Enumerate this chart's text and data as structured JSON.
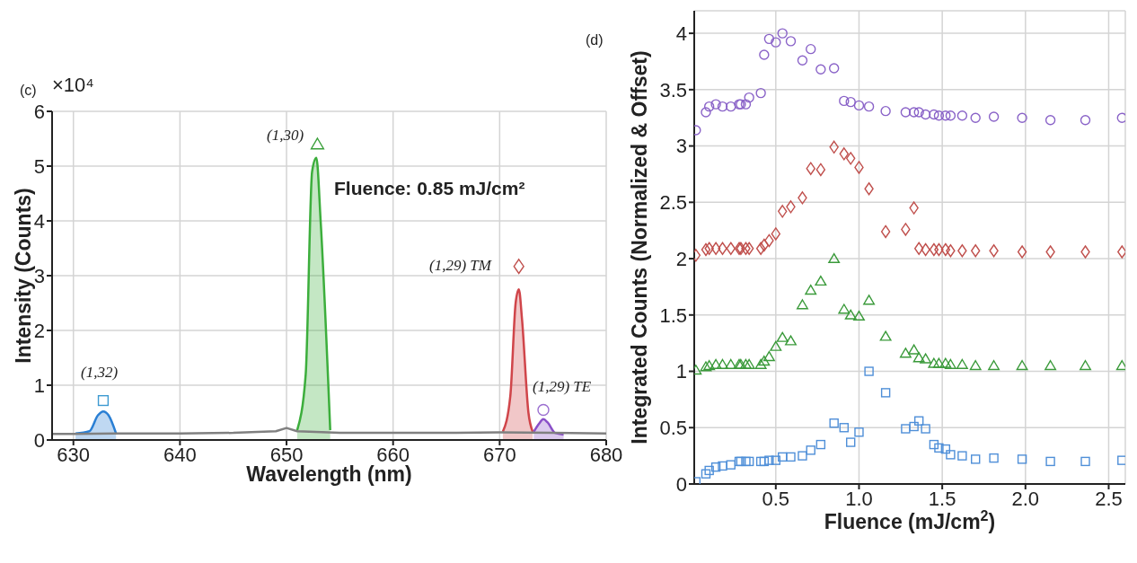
{
  "chart_data": [
    {
      "type": "area",
      "title": "(c)",
      "xlabel": "Wavelength (nm)",
      "ylabel": "Intensity (Counts)",
      "xlim": [
        628,
        680
      ],
      "xticks": [
        630,
        640,
        650,
        660,
        670,
        680
      ],
      "ylim": [
        0,
        6
      ],
      "yticks": [
        0,
        1,
        2,
        3,
        4,
        5,
        6
      ],
      "grid": true,
      "annotations": [
        "×10⁴",
        "Fluence: 0.85 mJ/cm²",
        "(1,32)",
        "(1,30)",
        "(1,29) TM",
        "(1,29) TE"
      ],
      "series": [
        {
          "type": "line",
          "color": "#808080",
          "x": [
            628,
            630,
            634,
            640,
            645,
            649,
            650,
            651,
            655,
            660,
            665,
            670,
            675,
            680
          ],
          "values": [
            0.11,
            0.11,
            0.12,
            0.12,
            0.13,
            0.16,
            0.22,
            0.16,
            0.13,
            0.13,
            0.13,
            0.14,
            0.13,
            0.12
          ]
        },
        {
          "color": "#2a7fd4",
          "x": [
            630.2,
            631.5,
            632.3,
            632.8,
            633.3,
            634
          ],
          "values": [
            0.12,
            0.16,
            0.45,
            0.52,
            0.45,
            0.12
          ]
        },
        {
          "color": "#3cae3c",
          "x": [
            651,
            651.8,
            652.4,
            652.8,
            653.2,
            654.1
          ],
          "values": [
            0.18,
            1.2,
            4.9,
            5.15,
            4.0,
            0.18
          ]
        },
        {
          "color": "#d0454a",
          "x": [
            670.3,
            671,
            671.5,
            671.8,
            672.1,
            672.7,
            673.1
          ],
          "values": [
            0.15,
            0.8,
            2.5,
            2.75,
            2.2,
            0.5,
            0.15
          ]
        },
        {
          "color": "#8a4fc8",
          "x": [
            673.2,
            673.7,
            674.1,
            674.5,
            675.2,
            676
          ],
          "values": [
            0.15,
            0.3,
            0.38,
            0.32,
            0.13,
            0.1
          ]
        },
        {
          "type": "scatter",
          "marker": "square",
          "color": "#3d9ad1",
          "x": [
            632.8
          ],
          "values": [
            0.72
          ]
        },
        {
          "type": "scatter",
          "marker": "triangle",
          "color": "#3aa03a",
          "x": [
            652.9
          ],
          "values": [
            5.4
          ]
        },
        {
          "type": "scatter",
          "marker": "diamond",
          "color": "#c0504d",
          "x": [
            671.8
          ],
          "values": [
            3.17
          ]
        },
        {
          "type": "scatter",
          "marker": "circle",
          "color": "#9b6fd0",
          "x": [
            674.1
          ],
          "values": [
            0.55
          ]
        }
      ]
    },
    {
      "type": "scatter",
      "title": "(d)",
      "xlabel": "Fluence (mJ/cm$^{2}$)",
      "ylabel": "Integrated Counts (Normalized & Offset)",
      "xlim": [
        0.01,
        2.6
      ],
      "xticks": [
        {
          "value": 0.5,
          "label": "0.5"
        },
        {
          "value": 1,
          "label": "1.0"
        },
        {
          "value": 1.5,
          "label": "1.5"
        },
        {
          "value": 2,
          "label": "2.0"
        },
        {
          "value": 2.5,
          "label": "2.5"
        }
      ],
      "ylim": [
        0,
        4.2
      ],
      "yticks": [
        0,
        0.5,
        1,
        1.5,
        2,
        2.5,
        3,
        3.5,
        4
      ],
      "grid": true,
      "x": [
        0.02,
        0.08,
        0.1,
        0.14,
        0.18,
        0.23,
        0.28,
        0.29,
        0.32,
        0.34,
        0.41,
        0.43,
        0.46,
        0.5,
        0.54,
        0.59,
        0.66,
        0.71,
        0.77,
        0.85,
        0.91,
        0.95,
        1.0,
        1.06,
        1.16,
        1.28,
        1.33,
        1.36,
        1.4,
        1.45,
        1.48,
        1.52,
        1.55,
        1.62,
        1.7,
        1.81,
        1.98,
        2.15,
        2.36,
        2.58
      ],
      "series": [
        {
          "marker": "square",
          "color": "#4f8fd8",
          "values": [
            0.02,
            0.09,
            0.12,
            0.15,
            0.16,
            0.17,
            0.2,
            0.2,
            0.2,
            0.2,
            0.2,
            0.2,
            0.21,
            0.21,
            0.24,
            0.24,
            0.25,
            0.3,
            0.35,
            0.54,
            0.5,
            0.37,
            0.46,
            1.0,
            0.81,
            0.49,
            0.51,
            0.56,
            0.49,
            0.35,
            0.32,
            0.31,
            0.26,
            0.25,
            0.22,
            0.23,
            0.22,
            0.2,
            0.2,
            0.21
          ]
        },
        {
          "marker": "triangle",
          "color": "#3a9a3a",
          "values": [
            1.01,
            1.04,
            1.05,
            1.06,
            1.06,
            1.06,
            1.06,
            1.06,
            1.06,
            1.06,
            1.06,
            1.09,
            1.13,
            1.22,
            1.3,
            1.27,
            1.59,
            1.72,
            1.8,
            2.0,
            1.55,
            1.5,
            1.49,
            1.63,
            1.31,
            1.16,
            1.19,
            1.12,
            1.11,
            1.07,
            1.07,
            1.07,
            1.06,
            1.06,
            1.05,
            1.05,
            1.05,
            1.05,
            1.05,
            1.05
          ]
        },
        {
          "marker": "diamond",
          "color": "#c0504d",
          "values": [
            2.03,
            2.08,
            2.09,
            2.09,
            2.09,
            2.09,
            2.09,
            2.09,
            2.09,
            2.09,
            2.09,
            2.12,
            2.16,
            2.22,
            2.42,
            2.46,
            2.54,
            2.8,
            2.79,
            2.99,
            2.93,
            2.89,
            2.81,
            2.62,
            2.24,
            2.26,
            2.45,
            2.09,
            2.08,
            2.08,
            2.08,
            2.08,
            2.07,
            2.07,
            2.07,
            2.07,
            2.06,
            2.06,
            2.06,
            2.06
          ]
        },
        {
          "marker": "circle",
          "color": "#8a63c8",
          "values": [
            3.14,
            3.3,
            3.35,
            3.37,
            3.35,
            3.35,
            3.37,
            3.37,
            3.37,
            3.43,
            3.47,
            3.81,
            3.95,
            3.92,
            4.0,
            3.93,
            3.76,
            3.86,
            3.68,
            3.69,
            3.4,
            3.39,
            3.36,
            3.35,
            3.31,
            3.3,
            3.3,
            3.3,
            3.28,
            3.28,
            3.27,
            3.27,
            3.27,
            3.27,
            3.25,
            3.26,
            3.25,
            3.23,
            3.23,
            3.25
          ]
        }
      ]
    }
  ]
}
